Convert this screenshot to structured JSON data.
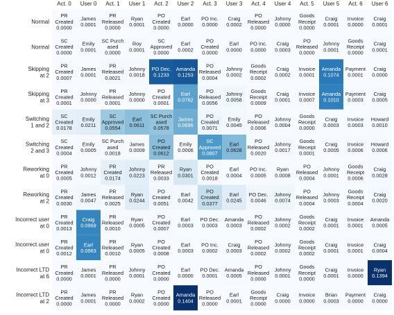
{
  "chart_data": {
    "type": "heatmap",
    "columns": [
      "Act. 0",
      "User 0",
      "Act. 1",
      "User 1",
      "Act. 2",
      "User 2",
      "Act. 3",
      "User 3",
      "Act. 4",
      "User 4",
      "Act. 5",
      "User 5",
      "Act. 6",
      "User 6"
    ],
    "rows": [
      {
        "label": "Normal",
        "cells": [
          {
            "text": "PR\nCreated",
            "value": 0.0
          },
          {
            "text": "James",
            "value": 0.0001
          },
          {
            "text": "PR\nReleased",
            "value": 0.0
          },
          {
            "text": "Ryan",
            "value": 0.0001
          },
          {
            "text": "PO\nCreated",
            "value": 0.0
          },
          {
            "text": "Earl",
            "value": 0.0
          },
          {
            "text": "PO Inc.",
            "value": 0.0
          },
          {
            "text": "Craig",
            "value": 0.0002
          },
          {
            "text": "PO\nReleased",
            "value": 0.0
          },
          {
            "text": "Johnny",
            "value": 0.0
          },
          {
            "text": "Goods\nReceipt",
            "value": 0.0
          },
          {
            "text": "Craig",
            "value": 0.0001
          },
          {
            "text": "Invoice",
            "value": 0.0
          },
          {
            "text": "Craig",
            "value": 0.0001
          }
        ]
      },
      {
        "label": "Normal",
        "cells": [
          {
            "text": "SC\nCreated",
            "value": 0.0
          },
          {
            "text": "Emily",
            "value": 0.0001
          },
          {
            "text": "SC Purch\nased",
            "value": 0.0
          },
          {
            "text": "Roy",
            "value": 0.0001
          },
          {
            "text": "SC\nApproved",
            "value": 0.0
          },
          {
            "text": "Earl",
            "value": 0.0002
          },
          {
            "text": "PO\nCreated",
            "value": 0.0
          },
          {
            "text": "Earl",
            "value": 0.0
          },
          {
            "text": "PO Inc.",
            "value": 0.0
          },
          {
            "text": "Craig",
            "value": 0.0003
          },
          {
            "text": "PO\nReleased",
            "value": 0.0
          },
          {
            "text": "Johnny",
            "value": 0.0001
          },
          {
            "text": "Goods\nReceipt",
            "value": 0.0
          },
          {
            "text": "Craig",
            "value": 0.0001
          }
        ]
      },
      {
        "label": "Skipping\nat 2",
        "cells": [
          {
            "text": "PR\nCreated",
            "value": 0.0007
          },
          {
            "text": "James",
            "value": 0.0001
          },
          {
            "text": "PR\nReleased",
            "value": 0.0021
          },
          {
            "text": "Johnny",
            "value": 0.0018
          },
          {
            "text": "PO Dec.",
            "value": 0.1233
          },
          {
            "text": "Amanda",
            "value": 0.1253
          },
          {
            "text": "PO\nReleased",
            "value": 0.0004
          },
          {
            "text": "Johnny",
            "value": 0.0002
          },
          {
            "text": "Goods\nReceipt",
            "value": 0.0002
          },
          {
            "text": "Craig",
            "value": 0.0002
          },
          {
            "text": "Invoice",
            "value": 0.0001
          },
          {
            "text": "Amanda",
            "value": 0.1074
          },
          {
            "text": "Payment",
            "value": 0.0001
          },
          {
            "text": "Craig",
            "value": 0.0
          }
        ]
      },
      {
        "label": "Skipping\nat 3",
        "cells": [
          {
            "text": "PR\nCreated",
            "value": 0.0001
          },
          {
            "text": "Johnny",
            "value": 0.0
          },
          {
            "text": "PR\nReleased",
            "value": 0.0001
          },
          {
            "text": "Johnny",
            "value": 0.0
          },
          {
            "text": "PO\nCreated",
            "value": 0.0001
          },
          {
            "text": "Earl",
            "value": 0.0762
          },
          {
            "text": "PO\nReleased",
            "value": 0.0056
          },
          {
            "text": "Johnny",
            "value": 0.0058
          },
          {
            "text": "Goods\nReceipt",
            "value": 0.0009
          },
          {
            "text": "Craig",
            "value": 0.0001
          },
          {
            "text": "Invoice",
            "value": 0.0007
          },
          {
            "text": "Amanda",
            "value": 0.101
          },
          {
            "text": "Payment",
            "value": 0.0003
          },
          {
            "text": "Craig",
            "value": 0.0005
          }
        ]
      },
      {
        "label": "Switching\n1 and 2",
        "cells": [
          {
            "text": "SC\nCreated",
            "value": 0.0178
          },
          {
            "text": "Emily",
            "value": 0.0211
          },
          {
            "text": "SC\nApproved",
            "value": 0.0554
          },
          {
            "text": "Earl",
            "value": 0.0611
          },
          {
            "text": "SC Purch\nased",
            "value": 0.0578
          },
          {
            "text": "James",
            "value": 0.0696
          },
          {
            "text": "PO\nCreated",
            "value": 0.0071
          },
          {
            "text": "Emily",
            "value": 0.0045
          },
          {
            "text": "PO\nReleased",
            "value": 0.0006
          },
          {
            "text": "Johnny",
            "value": 0.0004
          },
          {
            "text": "Goods\nReceipt",
            "value": 0.0
          },
          {
            "text": "Craig",
            "value": 0.0003
          },
          {
            "text": "Invoice",
            "value": 0.0003
          },
          {
            "text": "Howard",
            "value": 0.001
          }
        ]
      },
      {
        "label": "Switching\n2 and 3",
        "cells": [
          {
            "text": "SC\nCreated",
            "value": 0.0004
          },
          {
            "text": "Emily",
            "value": 0.0005
          },
          {
            "text": "SC Purch\nased",
            "value": 0.0018
          },
          {
            "text": "James",
            "value": 0.0009
          },
          {
            "text": "PO\nCreated",
            "value": 0.0612
          },
          {
            "text": "Emily",
            "value": 0.0006
          },
          {
            "text": "SC\nApproved",
            "value": 0.0807
          },
          {
            "text": "Earl",
            "value": 0.0628
          },
          {
            "text": "PO\nReleased",
            "value": 0.002
          },
          {
            "text": "Johnny",
            "value": 0.0017
          },
          {
            "text": "Goods\nReceipt",
            "value": 0.0001
          },
          {
            "text": "Craig",
            "value": 0.0005
          },
          {
            "text": "Invoice",
            "value": 0.0006
          },
          {
            "text": "Howard",
            "value": 0.0006
          }
        ]
      },
      {
        "label": "Reworking\nat 0",
        "cells": [
          {
            "text": "PR\nCreated",
            "value": 0.0005
          },
          {
            "text": "Johnny",
            "value": 0.0012
          },
          {
            "text": "PR\nCreated",
            "value": 0.0174
          },
          {
            "text": "Johnny",
            "value": 0.0223
          },
          {
            "text": "PR\nReleased",
            "value": 0.0033
          },
          {
            "text": "Ryan",
            "value": 0.0301
          },
          {
            "text": "PO\nCreated",
            "value": 0.0018
          },
          {
            "text": "Earl",
            "value": 0.0004
          },
          {
            "text": "PO Inc.",
            "value": 0.0005
          },
          {
            "text": "Ryan",
            "value": 0.0008
          },
          {
            "text": "PO\nReleased",
            "value": 0.0004
          },
          {
            "text": "Johnny",
            "value": 0.0001
          },
          {
            "text": "Goods\nReceipt",
            "value": 0.0006
          },
          {
            "text": "Craig",
            "value": 0.0028
          }
        ]
      },
      {
        "label": "Reworking\nat 2",
        "cells": [
          {
            "text": "PR\nCreated",
            "value": 0.003
          },
          {
            "text": "James",
            "value": 0.0047
          },
          {
            "text": "PR\nReleased",
            "value": 0.0025
          },
          {
            "text": "Ryan",
            "value": 0.0244
          },
          {
            "text": "PO\nCreated",
            "value": 0.0051
          },
          {
            "text": "Earl",
            "value": 0.0042
          },
          {
            "text": "PO\nCreated",
            "value": 0.0377
          },
          {
            "text": "Earl",
            "value": 0.0245
          },
          {
            "text": "PO Dec.",
            "value": 0.0046
          },
          {
            "text": "Johnny",
            "value": 0.0074
          },
          {
            "text": "PO\nReleased",
            "value": 0.0004
          },
          {
            "text": "Johnny",
            "value": 0.0003
          },
          {
            "text": "Goods\nReceipt",
            "value": 0.0004
          },
          {
            "text": "Craig",
            "value": 0.002
          }
        ]
      },
      {
        "label": "Incorrect user\nat 0",
        "cells": [
          {
            "text": "PR\nCreated",
            "value": 0.0013
          },
          {
            "text": "Craig",
            "value": 0.0969
          },
          {
            "text": "PR\nReleased",
            "value": 0.001
          },
          {
            "text": "Ryan",
            "value": 0.0005
          },
          {
            "text": "PO\nCreated",
            "value": 0.0007
          },
          {
            "text": "Earl",
            "value": 0.0003
          },
          {
            "text": "PO Dec.",
            "value": 0.0003
          },
          {
            "text": "Amanda",
            "value": 0.0003
          },
          {
            "text": "PO\nReleased",
            "value": 0.0002
          },
          {
            "text": "Johnny",
            "value": 0.0002
          },
          {
            "text": "Goods\nReceipt",
            "value": 0.0002
          },
          {
            "text": "Craig",
            "value": 0.0001
          },
          {
            "text": "Invoice",
            "value": 0.0001
          },
          {
            "text": "Amanda",
            "value": 0.0005
          }
        ]
      },
      {
        "label": "Incorrect user\nat 0",
        "cells": [
          {
            "text": "PR\nCreated",
            "value": 0.0012
          },
          {
            "text": "Earl",
            "value": 0.0963
          },
          {
            "text": "PR\nReleased",
            "value": 0.001
          },
          {
            "text": "Ryan",
            "value": 0.0005
          },
          {
            "text": "PO\nCreated",
            "value": 0.0008
          },
          {
            "text": "Earl",
            "value": 0.0003
          },
          {
            "text": "PO Inc.",
            "value": 0.0002
          },
          {
            "text": "Craig",
            "value": 0.0003
          },
          {
            "text": "PO\nReleased",
            "value": 0.0002
          },
          {
            "text": "Johnny",
            "value": 0.0002
          },
          {
            "text": "Goods\nReceipt",
            "value": 0.0002
          },
          {
            "text": "Craig",
            "value": 0.0001
          },
          {
            "text": "Invoice",
            "value": 0.0001
          },
          {
            "text": "Craig",
            "value": 0.0004
          }
        ]
      },
      {
        "label": "Incorrect LTD\nat 6",
        "cells": [
          {
            "text": "PR\nCreated",
            "value": 0.0
          },
          {
            "text": "James",
            "value": 0.0001
          },
          {
            "text": "PR\nReleased",
            "value": 0.0
          },
          {
            "text": "Johnny",
            "value": 0.0001
          },
          {
            "text": "PO\nCreated",
            "value": 0.0
          },
          {
            "text": "Earl",
            "value": 0.0
          },
          {
            "text": "PO Dec.",
            "value": 0.0001
          },
          {
            "text": "Amanda",
            "value": 0.0005
          },
          {
            "text": "PO\nReleased",
            "value": 0.0
          },
          {
            "text": "Johnny",
            "value": 0.0001
          },
          {
            "text": "Goods\nReceipt",
            "value": 0.0
          },
          {
            "text": "Craig",
            "value": 0.0001
          },
          {
            "text": "Invoice",
            "value": 0.0
          },
          {
            "text": "Ryan",
            "value": 0.1394
          }
        ]
      },
      {
        "label": "Incorrect LTD\nat 2",
        "cells": [
          {
            "text": "PR\nCreated",
            "value": 0.0
          },
          {
            "text": "James",
            "value": 0.0001
          },
          {
            "text": "PR\nReleased",
            "value": 0.0
          },
          {
            "text": "Ryan",
            "value": 0.0002
          },
          {
            "text": "PO\nCreated",
            "value": 0.0
          },
          {
            "text": "Amanda",
            "value": 0.1404
          },
          {
            "text": "PO\nReleased",
            "value": 0.0
          },
          {
            "text": "Earl",
            "value": 0.0001
          },
          {
            "text": "Goods\nReceipt",
            "value": 0.0
          },
          {
            "text": "Craig",
            "value": 0.0
          },
          {
            "text": "Invoice",
            "value": 0.0
          },
          {
            "text": "Brian",
            "value": 0.0003
          },
          {
            "text": "Payment",
            "value": 0.0
          },
          {
            "text": "Craig",
            "value": 0.0
          }
        ]
      }
    ],
    "vmax": 0.14,
    "color_low": "#f7fbff",
    "color_high": "#08306b"
  }
}
